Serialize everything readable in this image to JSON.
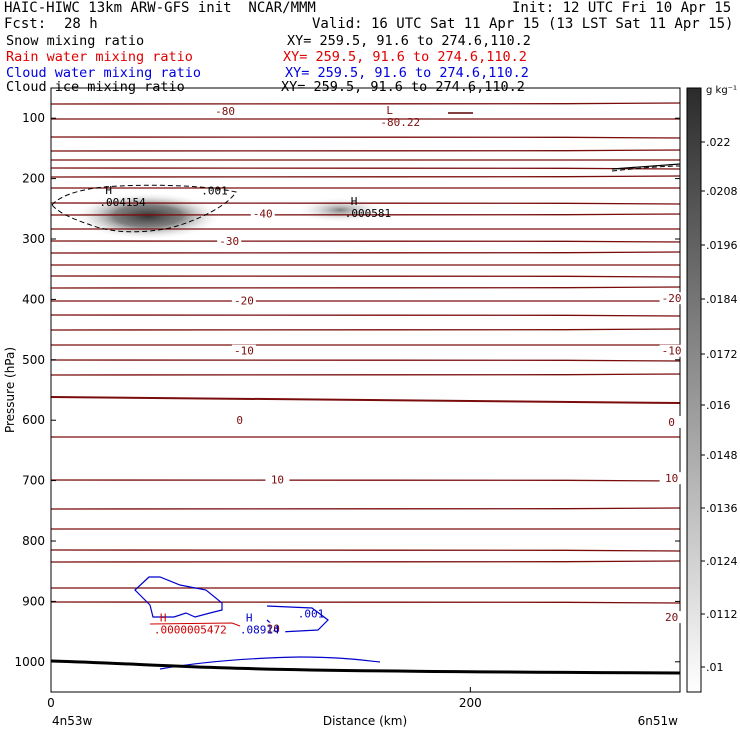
{
  "header": {
    "title": "HAIC-HIWC 13km ARW-GFS init  NCAR/MMM",
    "init": "Init: 12 UTC Fri 10 Apr 15",
    "fcst_label": "Fcst:",
    "fcst_value": "28 h",
    "valid": "Valid: 16 UTC Sat 11 Apr 15 (13 LST Sat 11 Apr 15)"
  },
  "fields": [
    {
      "name": "Snow mixing ratio",
      "xy": "XY= 259.5, 91.6 to 274.6,110.2",
      "color": "#000000"
    },
    {
      "name": "Rain water mixing ratio",
      "xy": "XY= 259.5, 91.6 to 274.6,110.2",
      "color": "#e00000"
    },
    {
      "name": "Cloud water mixing ratio",
      "xy": "XY= 259.5, 91.6 to 274.6,110.2",
      "color": "#0000e0"
    },
    {
      "name": "Cloud ice mixing ratio",
      "xy": "XY= 259.5, 91.6 to 274.6,110.2",
      "color": "#000000"
    }
  ],
  "colors": {
    "temperature": "#7a0c0c",
    "rain": "#cc0000",
    "cloud_water": "#0000cc",
    "snow": "#000000",
    "shade_dark": "#333333"
  },
  "chart_data": {
    "type": "heatmap",
    "xlabel": "Distance (km)",
    "ylabel": "Pressure (hPa)",
    "xlim": [
      0,
      300
    ],
    "ylim": [
      1050,
      50
    ],
    "x_ticks": [
      0,
      200
    ],
    "y_ticks": [
      100,
      200,
      300,
      400,
      500,
      600,
      700,
      800,
      900,
      1000
    ],
    "endpoints": {
      "left": "4n53w",
      "right": "6n51w"
    },
    "colorbar": {
      "unit": "g kg⁻¹",
      "levels": [
        ".01",
        ".0112",
        ".0124",
        ".0136",
        ".0148",
        ".016",
        ".0172",
        ".0184",
        ".0196",
        ".0208",
        ".022"
      ]
    },
    "temperature_labels": [
      {
        "text": "-80",
        "x": 83,
        "p": 88
      },
      {
        "text": "-40",
        "x": 101,
        "p": 258
      },
      {
        "text": "-30",
        "x": 85,
        "p": 303
      },
      {
        "text": "-20",
        "x": 92,
        "p": 402
      },
      {
        "text": "-20",
        "x": 296,
        "p": 398
      },
      {
        "text": "-10",
        "x": 92,
        "p": 485
      },
      {
        "text": "-10",
        "x": 296,
        "p": 485
      },
      {
        "text": "0",
        "x": 90,
        "p": 600
      },
      {
        "text": "0",
        "x": 296,
        "p": 603
      },
      {
        "text": "10",
        "x": 108,
        "p": 698
      },
      {
        "text": "10",
        "x": 296,
        "p": 696
      },
      {
        "text": "20",
        "x": 106,
        "p": 945
      },
      {
        "text": "20",
        "x": 296,
        "p": 926
      }
    ],
    "extrema": [
      {
        "kind": "L",
        "value": "-80.22",
        "x": 159,
        "p": 100,
        "color": "rain_dark"
      },
      {
        "kind": "H",
        "value": ".004154",
        "x": 25,
        "p": 232,
        "color": "snow"
      },
      {
        "kind": "H",
        "value": ".000581",
        "x": 142,
        "p": 250,
        "color": "snow"
      },
      {
        "kind": "H",
        "value": ".0000005472",
        "x": 51,
        "p": 940,
        "color": "rain"
      },
      {
        "kind": "H",
        "value": ".08914",
        "x": 92,
        "p": 940,
        "color": "cloud_water"
      }
    ],
    "contour_labels": [
      {
        "text": ".001",
        "x": 78,
        "p": 220,
        "color": "snow"
      },
      {
        "text": ".001",
        "x": 124,
        "p": 920,
        "color": "cloud_water"
      }
    ],
    "shaded_regions": [
      {
        "x": 48,
        "p": 270,
        "max": ".0208"
      },
      {
        "x": 143,
        "p": 260,
        "max": ".0112"
      }
    ]
  }
}
